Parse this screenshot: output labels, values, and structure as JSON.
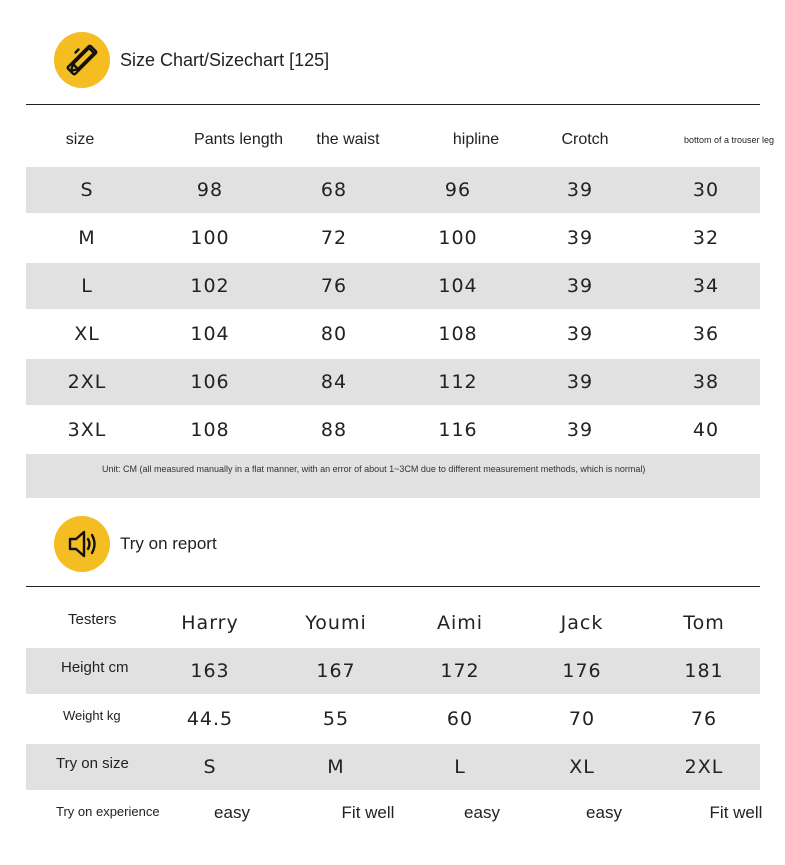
{
  "size_chart": {
    "title": "Size Chart/Sizechart [125]",
    "icon": "ruler-pencil-icon",
    "accent_color": "#f4bd22",
    "headers": [
      "size",
      "Pants length",
      "the waist",
      "hipline",
      "Crotch",
      "bottom of a trouser leg"
    ],
    "rows": [
      [
        "S",
        "98",
        "68",
        "96",
        "39",
        "30"
      ],
      [
        "M",
        "100",
        "72",
        "100",
        "39",
        "32"
      ],
      [
        "L",
        "102",
        "76",
        "104",
        "39",
        "34"
      ],
      [
        "XL",
        "104",
        "80",
        "108",
        "39",
        "36"
      ],
      [
        "2XL",
        "106",
        "84",
        "112",
        "39",
        "38"
      ],
      [
        "3XL",
        "108",
        "88",
        "116",
        "39",
        "40"
      ]
    ],
    "note": "Unit: CM (all measured manually in a flat manner, with an error of about 1~3CM due to different measurement methods, which is normal)"
  },
  "try_on": {
    "title": "Try on report",
    "icon": "speaker-icon",
    "headers": [
      "Testers",
      "Harry",
      "Youmi",
      "Aimi",
      "Jack",
      "Tom"
    ],
    "rows": [
      [
        "Height cm",
        "163",
        "167",
        "172",
        "176",
        "181"
      ],
      [
        "Weight kg",
        "44.5",
        "55",
        "60",
        "70",
        "76"
      ],
      [
        "Try on size",
        "S",
        "M",
        "L",
        "XL",
        "2XL"
      ],
      [
        "Try on experience",
        "easy",
        "Fit well",
        "easy",
        "easy",
        "Fit well"
      ]
    ]
  }
}
